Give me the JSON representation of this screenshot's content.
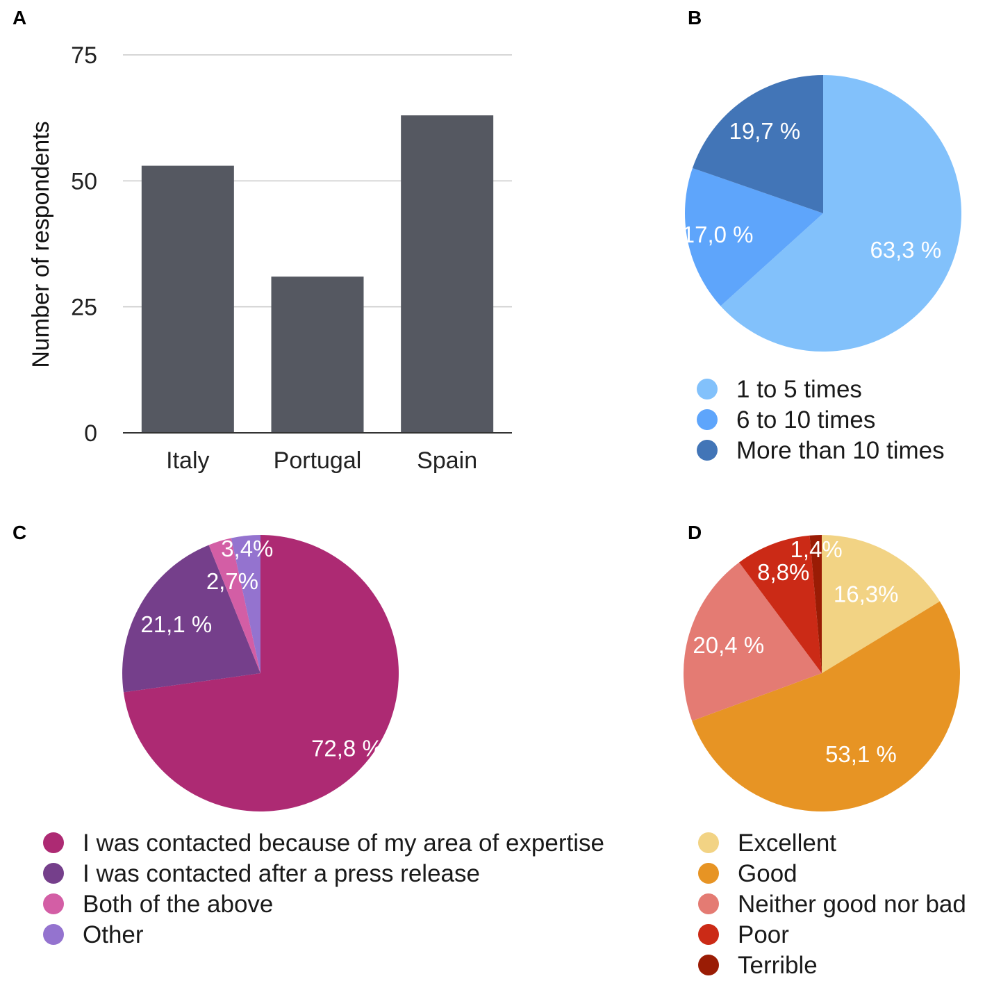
{
  "panels": {
    "a": "A",
    "b": "B",
    "c": "C",
    "d": "D"
  },
  "chart_data": [
    {
      "id": "A",
      "type": "bar",
      "categories": [
        "Italy",
        "Portugal",
        "Spain"
      ],
      "values": [
        53,
        31,
        63
      ],
      "ylabel": "Number of respondents",
      "xlabel": "",
      "ylim": [
        0,
        75
      ],
      "yticks": [
        "0",
        "25",
        "50",
        "75"
      ],
      "grid": true,
      "bar_color": "#555861"
    },
    {
      "id": "B",
      "type": "pie",
      "labels": [
        "1 to 5 times",
        "6 to 10 times",
        "More than 10 times"
      ],
      "values": [
        63.3,
        17.0,
        19.7
      ],
      "value_labels": [
        "63,3 %",
        "17,0 %",
        "19,7 %"
      ],
      "colors": [
        "#82c1fb",
        "#5ea5fb",
        "#4275b7"
      ],
      "legend": "bottom"
    },
    {
      "id": "C",
      "type": "pie",
      "labels": [
        "I was contacted because of my area of expertise",
        "I was contacted after a press release",
        "Both of the above",
        "Other"
      ],
      "values": [
        72.8,
        21.1,
        2.7,
        3.4
      ],
      "value_labels": [
        "72,8 %",
        "21,1 %",
        "2,7%",
        "3,4%"
      ],
      "colors": [
        "#ad2a73",
        "#753f8b",
        "#d35ea5",
        "#9473cf"
      ],
      "legend": "bottom"
    },
    {
      "id": "D",
      "type": "pie",
      "labels": [
        "Excellent",
        "Good",
        "Neither good nor bad",
        "Poor",
        "Terrible"
      ],
      "values": [
        16.3,
        53.1,
        20.4,
        8.8,
        1.4
      ],
      "value_labels": [
        "16,3%",
        "53,1 %",
        "20,4 %",
        "8,8%",
        "1,4%"
      ],
      "colors": [
        "#f2d384",
        "#e79424",
        "#e47b73",
        "#cb2a16",
        "#9a1c05"
      ],
      "legend": "bottom"
    }
  ]
}
